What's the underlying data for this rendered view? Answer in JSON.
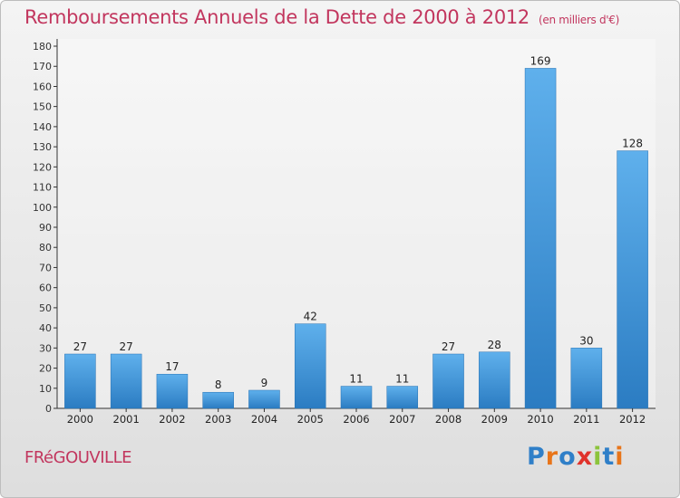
{
  "header": {
    "title": "Remboursements Annuels de la Dette de 2000 à 2012",
    "subtitle": "(en milliers d'€)"
  },
  "footer": {
    "commune": "FRéGOUVILLE",
    "logo_text": "Proxiti",
    "logo_colors": [
      "#2f7fc8",
      "#e8751a",
      "#2f7fc8",
      "#e0322b",
      "#8cc43c",
      "#2f7fc8",
      "#e8751a"
    ]
  },
  "colors": {
    "title": "#c2365e",
    "bar_light": "#5fb0ec",
    "bar_dark": "#2b7cc2",
    "background": "#e6e6e6"
  },
  "chart_data": {
    "type": "bar",
    "title": "Remboursements Annuels de la Dette de 2000 à 2012",
    "subtitle": "(en milliers d'€)",
    "categories": [
      "2000",
      "2001",
      "2002",
      "2003",
      "2004",
      "2005",
      "2006",
      "2007",
      "2008",
      "2009",
      "2010",
      "2011",
      "2012"
    ],
    "values": [
      27,
      27,
      17,
      8,
      9,
      42,
      11,
      11,
      27,
      28,
      169,
      30,
      128
    ],
    "ylim": [
      0,
      180
    ],
    "yticks": [
      0,
      10,
      20,
      30,
      40,
      50,
      60,
      70,
      80,
      90,
      100,
      110,
      120,
      130,
      140,
      150,
      160,
      170,
      180
    ],
    "grid": false,
    "data_labels": true
  }
}
